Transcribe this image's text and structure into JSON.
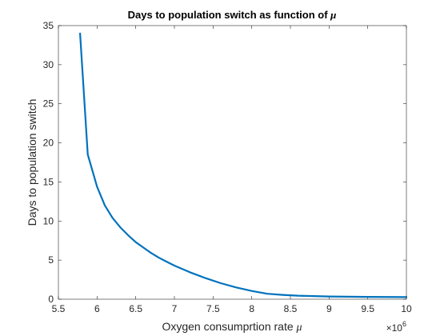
{
  "chart_data": {
    "type": "line",
    "title": "Days to population switch as function of ",
    "title_symbol": "μ",
    "xlabel": "Oxygen consumprtion rate ",
    "xlabel_symbol": "μ",
    "ylabel": "Days to population switch",
    "x_exponent_label": "×10",
    "x_exponent_power": "6",
    "xlim": [
      5.5,
      10
    ],
    "ylim": [
      0,
      35
    ],
    "xticks": [
      "5.5",
      "6",
      "6.5",
      "7",
      "7.5",
      "8",
      "8.5",
      "9",
      "9.5",
      "10"
    ],
    "yticks": [
      "0",
      "5",
      "10",
      "15",
      "20",
      "25",
      "30",
      "35"
    ],
    "grid": false,
    "line_color": "#0072BD",
    "series": [
      {
        "x": [
          5.78,
          5.88,
          6.0,
          6.1,
          6.2,
          6.3,
          6.4,
          6.5,
          6.6,
          6.7,
          6.8,
          6.9,
          7.0,
          7.2,
          7.4,
          7.6,
          7.8,
          8.0,
          8.2,
          8.4,
          8.6,
          8.8,
          9.0,
          9.5,
          10.0
        ],
        "y": [
          34.0,
          18.5,
          14.4,
          12.0,
          10.4,
          9.2,
          8.2,
          7.3,
          6.6,
          5.9,
          5.3,
          4.8,
          4.3,
          3.45,
          2.7,
          2.05,
          1.5,
          1.05,
          0.7,
          0.55,
          0.45,
          0.4,
          0.35,
          0.3,
          0.27
        ]
      }
    ]
  }
}
